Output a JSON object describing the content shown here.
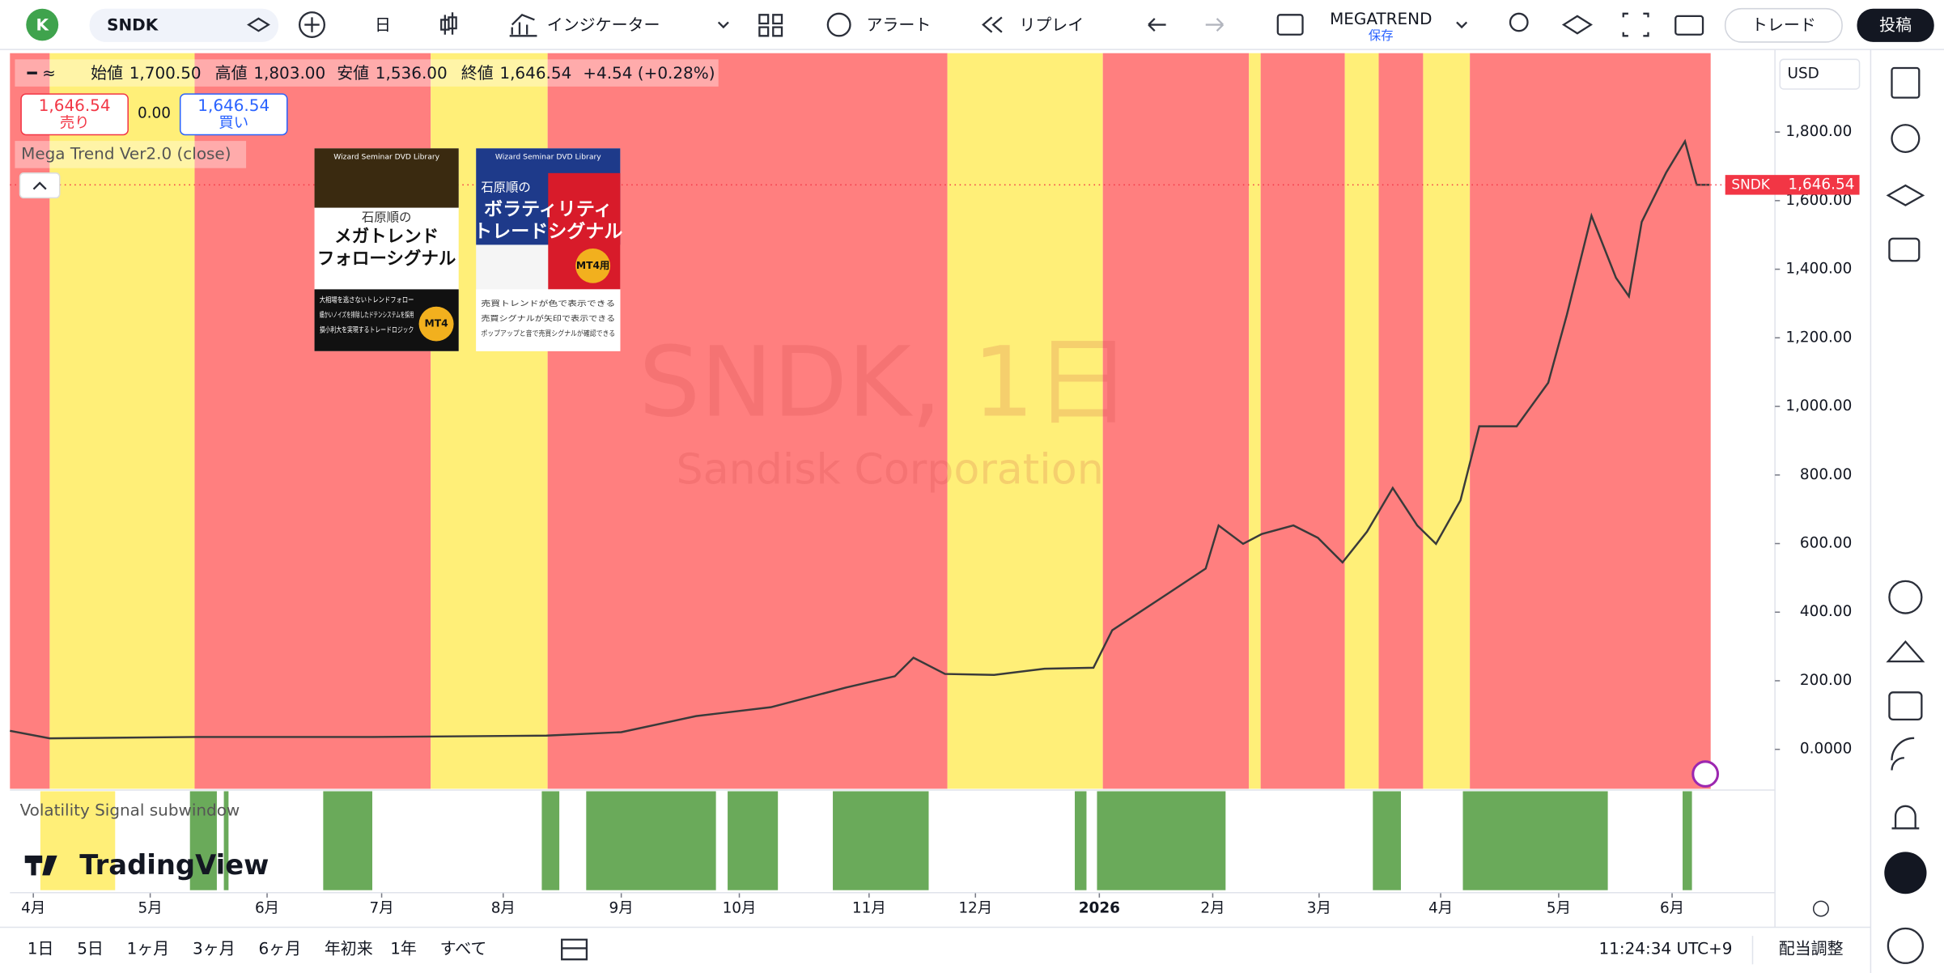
{
  "toolbar": {
    "avatar": "K",
    "symbol": "SNDK",
    "interval": "日",
    "indicators": "インジケーター",
    "alert": "アラート",
    "replay": "リプレイ",
    "layout_name": "MEGATREND",
    "layout_status": "保存",
    "trade": "トレード",
    "publish": "投稿"
  },
  "legend": {
    "open_label": "始値",
    "open": "1,700.50",
    "high_label": "高値",
    "high": "1,803.00",
    "low_label": "安値",
    "low": "1,536.00",
    "close_label": "終値",
    "close": "1,646.54",
    "change": "+4.54 (+0.28%)",
    "sell_price": "1,646.54",
    "sell": "売り",
    "spread": "0.00",
    "buy_price": "1,646.54",
    "buy": "買い",
    "indicator": "Mega Trend Ver2.0 (close)"
  },
  "watermark": {
    "symbol": "SNDK, 1日",
    "name": "Sandisk Corporation"
  },
  "ads": [
    {
      "series": "Wizard Seminar DVD Library",
      "author": "石原順の",
      "title_lines": [
        "メガトレンド",
        "フォローシグナル"
      ],
      "points": [
        "大相場を逃さないトレンドフォロー",
        "細かいノイズを排除したドテンシステムを採用",
        "損小利大を実現するトレードロジック"
      ],
      "badge": "MT4"
    },
    {
      "series": "Wizard Seminar DVD Library",
      "author": "石原順の",
      "title_lines": [
        "ボラティリティ",
        "トレードシグナル"
      ],
      "points": [
        "売買トレンドが色で表示できる",
        "売買シグナルが矢印で表示できる",
        "ポップアップと音で売買シグナルが確認できる"
      ],
      "badge": "MT4用"
    }
  ],
  "chart_data": {
    "type": "line",
    "x": [
      -0.2,
      0.14,
      1.38,
      2.9,
      4.39,
      5.03,
      5.67,
      6.31,
      6.95,
      7.37,
      7.53,
      7.8,
      8.22,
      8.65,
      9.07,
      9.23,
      9.71,
      10.03,
      10.14,
      10.35,
      10.51,
      10.78,
      10.99,
      11.2,
      11.41,
      11.63,
      11.84,
      12.0,
      12.21,
      12.37,
      12.69,
      12.96,
      13.12,
      13.33,
      13.54,
      13.65,
      13.76,
      13.97,
      14.13,
      14.23,
      14.34
    ],
    "series": [
      {
        "name": "SNDK",
        "color": "#3a3a3a",
        "values": [
          54,
          32,
          36,
          36,
          40,
          50,
          97,
          123,
          180,
          213,
          267,
          220,
          217,
          235,
          238,
          347,
          455,
          527,
          653,
          599,
          628,
          653,
          617,
          545,
          635,
          762,
          653,
          599,
          726,
          942,
          942,
          1069,
          1267,
          1556,
          1375,
          1321,
          1538,
          1682,
          1773,
          1646,
          1646
        ]
      }
    ],
    "xlim": [
      -0.2,
      14.9
    ],
    "ylim": [
      -115,
      2030
    ],
    "xticks": [
      {
        "value": 0,
        "label": "4月"
      },
      {
        "value": 1,
        "label": "5月"
      },
      {
        "value": 2,
        "label": "6月"
      },
      {
        "value": 2.98,
        "label": "7月"
      },
      {
        "value": 4.02,
        "label": "8月"
      },
      {
        "value": 5.03,
        "label": "9月"
      },
      {
        "value": 6.04,
        "label": "10月"
      },
      {
        "value": 7.15,
        "label": "11月"
      },
      {
        "value": 8.06,
        "label": "12月"
      },
      {
        "value": 9.12,
        "label": "2026"
      },
      {
        "value": 10.09,
        "label": "2月"
      },
      {
        "value": 11,
        "label": "3月"
      },
      {
        "value": 12.04,
        "label": "4月"
      },
      {
        "value": 13.05,
        "label": "5月"
      },
      {
        "value": 14.02,
        "label": "6月"
      }
    ],
    "yticks": [
      {
        "value": 0,
        "label": "0.0000"
      },
      {
        "value": 200,
        "label": "200.00"
      },
      {
        "value": 400,
        "label": "400.00"
      },
      {
        "value": 600,
        "label": "600.00"
      },
      {
        "value": 800,
        "label": "800.00"
      },
      {
        "value": 1000,
        "label": "1,000.00"
      },
      {
        "value": 1200,
        "label": "1,200.00"
      },
      {
        "value": 1400,
        "label": "1,400.00"
      },
      {
        "value": 1600,
        "label": "1,600.00"
      },
      {
        "value": 1800,
        "label": "1,800.00"
      }
    ],
    "currency": "USD",
    "last_price_tag": {
      "symbol": "SNDK",
      "price": "1,646.54"
    },
    "bands": [
      {
        "start": -0.2,
        "end": 0.14,
        "color": "#ff7f7f"
      },
      {
        "start": 0.14,
        "end": 1.38,
        "color": "#ffef78"
      },
      {
        "start": 1.38,
        "end": 3.4,
        "color": "#ff7f7f"
      },
      {
        "start": 3.4,
        "end": 4.4,
        "color": "#ffef78"
      },
      {
        "start": 4.4,
        "end": 7.82,
        "color": "#ff7f7f"
      },
      {
        "start": 7.82,
        "end": 9.15,
        "color": "#ffef78"
      },
      {
        "start": 9.15,
        "end": 10.4,
        "color": "#ff7f7f"
      },
      {
        "start": 10.4,
        "end": 10.5,
        "color": "#ffef78"
      },
      {
        "start": 10.5,
        "end": 11.22,
        "color": "#ff7f7f"
      },
      {
        "start": 11.22,
        "end": 11.51,
        "color": "#ffef78"
      },
      {
        "start": 11.51,
        "end": 11.89,
        "color": "#ff7f7f"
      },
      {
        "start": 11.89,
        "end": 12.29,
        "color": "#ffef78"
      },
      {
        "start": 12.29,
        "end": 14.35,
        "color": "#ff7f7f"
      }
    ],
    "subwindow": {
      "title": "Volatility Signal subwindow",
      "bands": [
        {
          "start": 0.06,
          "end": 0.7,
          "color": "#ffef78"
        },
        {
          "start": 1.34,
          "end": 1.57,
          "color": "#6aaa5a"
        },
        {
          "start": 1.63,
          "end": 1.67,
          "color": "#6aaa5a"
        },
        {
          "start": 2.48,
          "end": 2.9,
          "color": "#6aaa5a"
        },
        {
          "start": 4.35,
          "end": 4.5,
          "color": "#6aaa5a"
        },
        {
          "start": 4.73,
          "end": 5.84,
          "color": "#6aaa5a"
        },
        {
          "start": 5.94,
          "end": 6.37,
          "color": "#6aaa5a"
        },
        {
          "start": 6.84,
          "end": 7.66,
          "color": "#6aaa5a"
        },
        {
          "start": 8.91,
          "end": 9.01,
          "color": "#6aaa5a"
        },
        {
          "start": 9.1,
          "end": 10.2,
          "color": "#6aaa5a"
        },
        {
          "start": 11.46,
          "end": 11.7,
          "color": "#6aaa5a"
        },
        {
          "start": 12.23,
          "end": 13.47,
          "color": "#6aaa5a"
        },
        {
          "start": 14.11,
          "end": 14.19,
          "color": "#6aaa5a"
        }
      ]
    }
  },
  "branding": "TradingView",
  "bottom_bar": {
    "ranges": [
      "1日",
      "5日",
      "1ヶ月",
      "3ヶ月",
      "6ヶ月",
      "年初来",
      "1年",
      "すべて"
    ],
    "clock": "11:24:34 UTC+9",
    "adjust": "配当調整"
  }
}
